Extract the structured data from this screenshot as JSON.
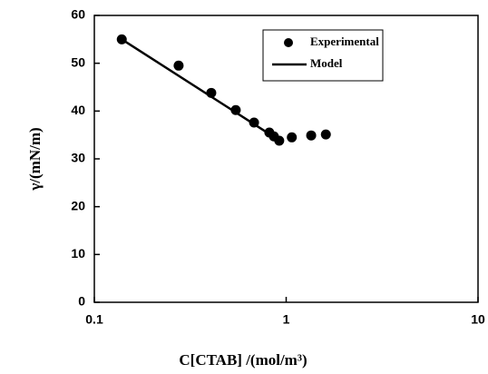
{
  "chart_data": {
    "type": "scatter",
    "xlabel": "C[CTAB] /(mol/m³)",
    "ylabel": "γ/(mN/m)",
    "xscale": "log",
    "xlim": [
      0.1,
      10
    ],
    "xticks": [
      0.1,
      1,
      10
    ],
    "ylim": [
      0,
      60
    ],
    "yticks": [
      0,
      10,
      20,
      30,
      40,
      50,
      60
    ],
    "legend": "upper right",
    "series": [
      {
        "name": "Experimental",
        "type": "scatter",
        "color": "#000000",
        "x": [
          0.139,
          0.275,
          0.407,
          0.546,
          0.68,
          0.817,
          0.863,
          0.92,
          1.07,
          1.35,
          1.61
        ],
        "values": [
          55.0,
          49.5,
          43.8,
          40.2,
          37.6,
          35.5,
          34.7,
          33.8,
          34.5,
          34.9,
          35.1
        ]
      },
      {
        "name": "Model",
        "type": "line",
        "color": "#000000",
        "x": [
          0.139,
          0.863
        ],
        "values": [
          55.0,
          34.6
        ]
      }
    ]
  }
}
